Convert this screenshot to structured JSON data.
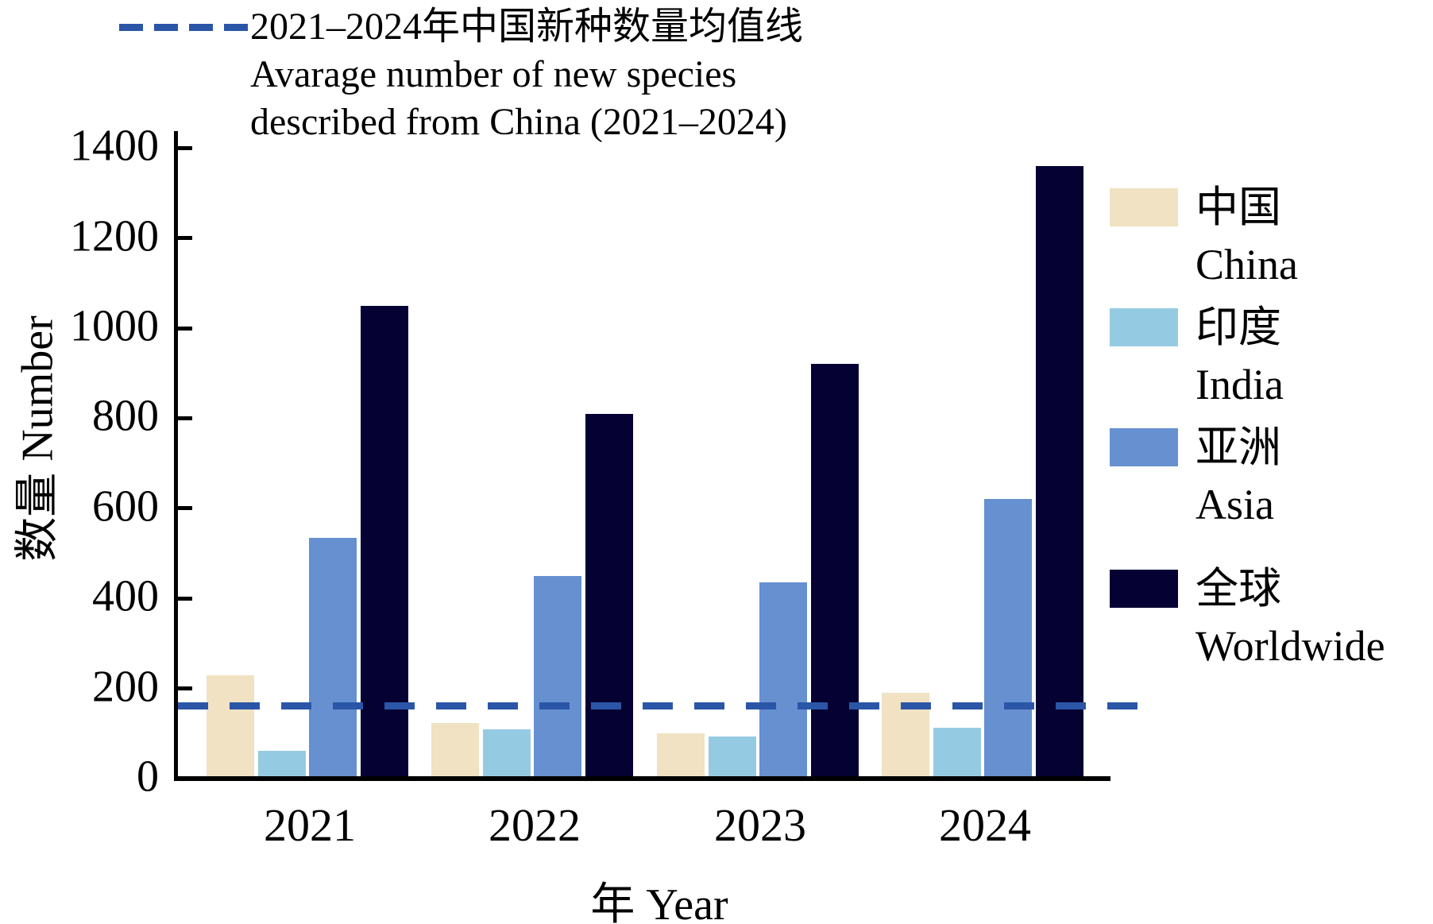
{
  "figure": {
    "mean_line_legend": {
      "line1": "2021–2024年中国新种数量均值线",
      "line2": "Avarage number of new species",
      "line3": "described from China (2021–2024)"
    }
  },
  "legend": {
    "entries": [
      {
        "key": "china",
        "zh": "中国",
        "en": "China",
        "color": "#f0e2c2"
      },
      {
        "key": "india",
        "zh": "印度",
        "en": "India",
        "color": "#95cbe2"
      },
      {
        "key": "asia",
        "zh": "亚洲",
        "en": "Asia",
        "color": "#6690d0"
      },
      {
        "key": "worldwide",
        "zh": "全球",
        "en": "Worldwide",
        "color": "#050233"
      }
    ]
  },
  "chart_data": {
    "type": "bar",
    "categories": [
      "2021",
      "2022",
      "2023",
      "2024"
    ],
    "series": [
      {
        "key": "china",
        "name": "中国 China",
        "color": "#f0e2c2",
        "values": [
          230,
          124,
          100,
          190
        ]
      },
      {
        "key": "india",
        "name": "印度 India",
        "color": "#95cbe2",
        "values": [
          62,
          110,
          94,
          113
        ]
      },
      {
        "key": "asia",
        "name": "亚洲 Asia",
        "color": "#6690d0",
        "values": [
          535,
          450,
          435,
          620
        ]
      },
      {
        "key": "worldwide",
        "name": "全球 Worldwide",
        "color": "#050233",
        "values": [
          1050,
          810,
          920,
          1360
        ]
      }
    ],
    "mean_line": {
      "value": 161,
      "color": "#2b56a8",
      "label": "2021–2024年中国新种数量均值线 Avarage number of new species described from China (2021–2024)"
    },
    "y_ticks": [
      0,
      200,
      400,
      600,
      800,
      1000,
      1200,
      1400
    ],
    "ylim": [
      0,
      1400
    ],
    "xlabel": "年 Year",
    "ylabel": "数量 Number",
    "grid": false,
    "legend_position": "right"
  }
}
